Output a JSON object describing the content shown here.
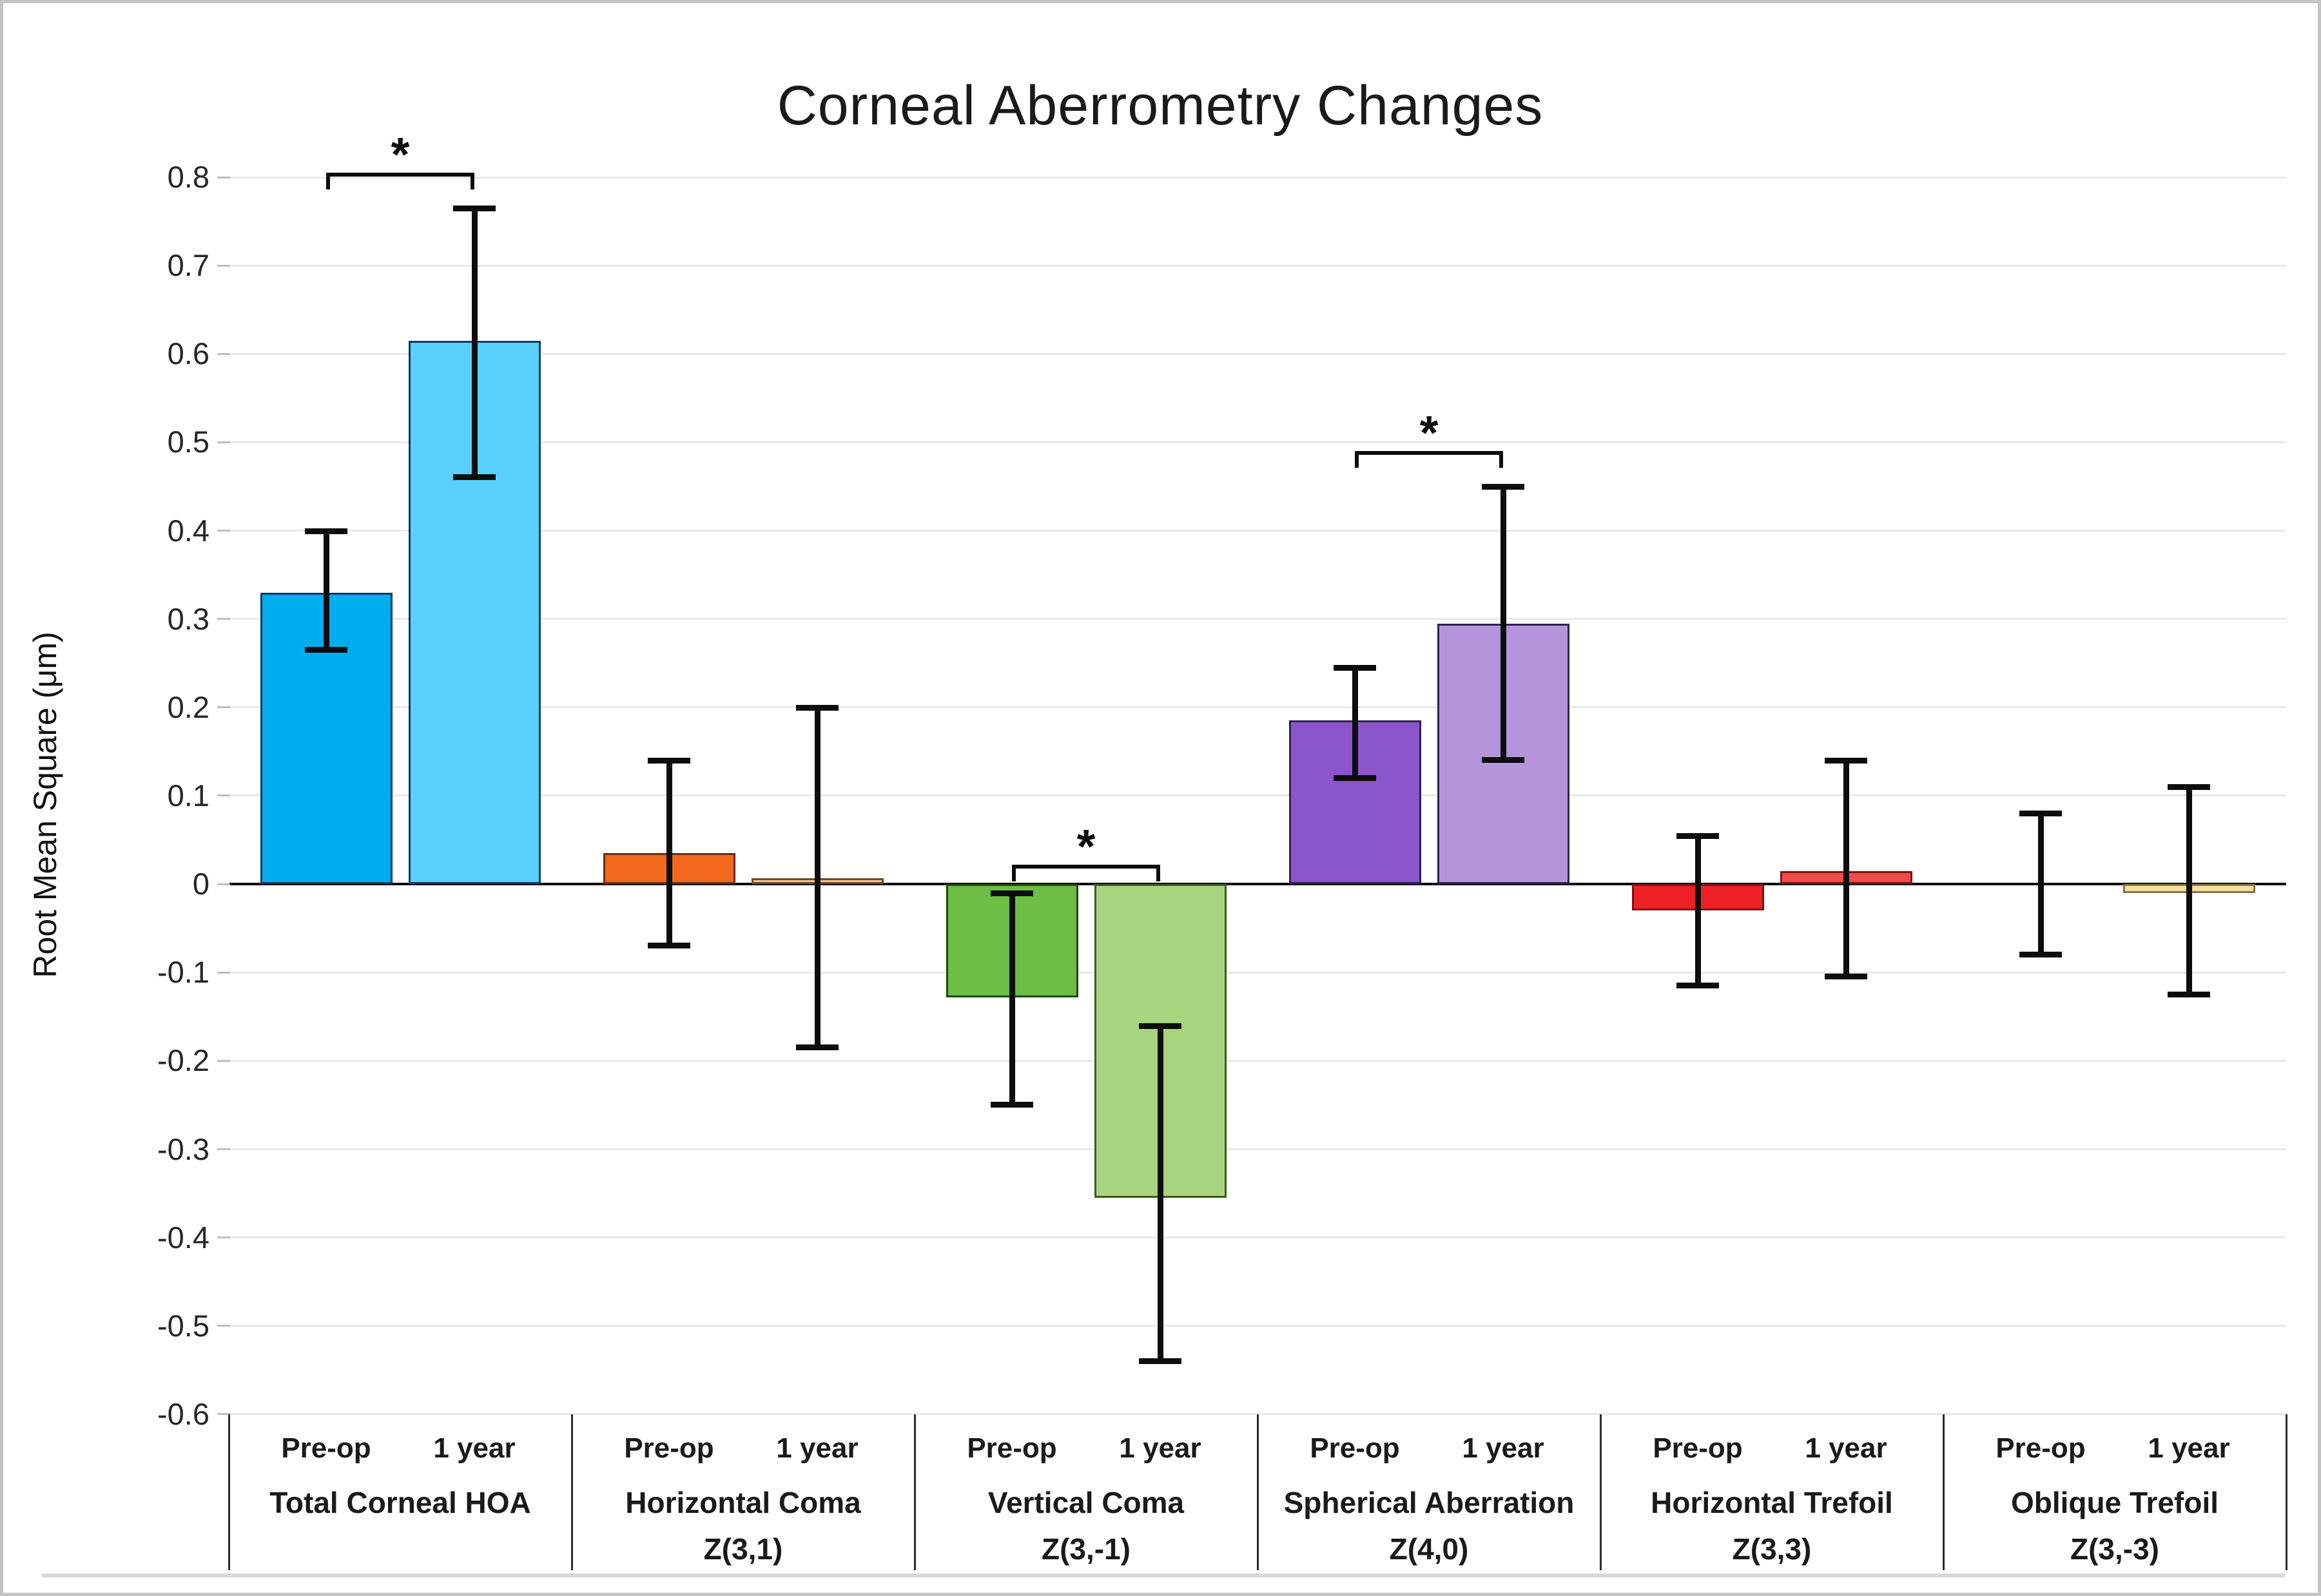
{
  "chart_data": {
    "type": "bar",
    "title": "Corneal Aberrometry Changes",
    "ylabel": "Root Mean Square (μm)",
    "ylim": [
      -0.6,
      0.8
    ],
    "ytick_step": 0.1,
    "grid": true,
    "legend": "none",
    "significance_symbol": "*",
    "y_tick_labels": [
      "0.8",
      "0.7",
      "0.6",
      "0.5",
      "0.4",
      "0.3",
      "0.2",
      "0.1",
      "0",
      "-0.1",
      "-0.2",
      "-0.3",
      "-0.4",
      "-0.5",
      "-0.6"
    ],
    "series_labels": [
      "Pre-op",
      "1 year"
    ],
    "groups": [
      {
        "name": "Total Corneal HOA",
        "zernike": "",
        "bars": [
          {
            "label": "Pre-op",
            "value": 0.33,
            "err_low": 0.265,
            "err_high": 0.4,
            "fill": "#00AEEF",
            "stroke": "#123A5E"
          },
          {
            "label": "1 year",
            "value": 0.615,
            "err_low": 0.46,
            "err_high": 0.765,
            "fill": "#58D0FB",
            "stroke": "#123A5E"
          }
        ],
        "significance": {
          "show": true,
          "bracket_y": 0.805
        }
      },
      {
        "name": "Horizontal Coma",
        "zernike": "Z(3,1)",
        "bars": [
          {
            "label": "Pre-op",
            "value": 0.035,
            "err_low": -0.07,
            "err_high": 0.14,
            "fill": "#F2691D",
            "stroke": "#6E2A0C"
          },
          {
            "label": "1 year",
            "value": 0.007,
            "err_low": -0.185,
            "err_high": 0.2,
            "fill": "#F0C492",
            "stroke": "#6B4A1F"
          }
        ],
        "significance": {
          "show": false
        }
      },
      {
        "name": "Vertical Coma",
        "zernike": "Z(3,-1)",
        "bars": [
          {
            "label": "Pre-op",
            "value": -0.128,
            "err_low": -0.25,
            "err_high": -0.01,
            "fill": "#6CBE45",
            "stroke": "#1F4708"
          },
          {
            "label": "1 year",
            "value": -0.355,
            "err_low": -0.54,
            "err_high": -0.16,
            "fill": "#A9D47F",
            "stroke": "#3A5B1E"
          }
        ],
        "significance": {
          "show": true,
          "bracket_y": 0.022
        }
      },
      {
        "name": "Spherical Aberration",
        "zernike": "Z(4,0)",
        "bars": [
          {
            "label": "Pre-op",
            "value": 0.185,
            "err_low": 0.12,
            "err_high": 0.245,
            "fill": "#8B55CB",
            "stroke": "#2F2152"
          },
          {
            "label": "1 year",
            "value": 0.295,
            "err_low": 0.14,
            "err_high": 0.45,
            "fill": "#B495DC",
            "stroke": "#2F2152"
          }
        ],
        "significance": {
          "show": true,
          "bracket_y": 0.49
        }
      },
      {
        "name": "Horizontal Trefoil",
        "zernike": "Z(3,3)",
        "bars": [
          {
            "label": "Pre-op",
            "value": -0.03,
            "err_low": -0.115,
            "err_high": 0.055,
            "fill": "#ED2024",
            "stroke": "#7C1216"
          },
          {
            "label": "1 year",
            "value": 0.015,
            "err_low": -0.105,
            "err_high": 0.14,
            "fill": "#F04C4C",
            "stroke": "#7C1216"
          }
        ],
        "significance": {
          "show": false
        }
      },
      {
        "name": "Oblique Trefoil",
        "zernike": "Z(3,-3)",
        "bars": [
          {
            "label": "Pre-op",
            "value": 0.0,
            "err_low": -0.08,
            "err_high": 0.08,
            "fill": "",
            "stroke": ""
          },
          {
            "label": "1 year",
            "value": -0.01,
            "err_low": -0.125,
            "err_high": 0.11,
            "fill": "#F5DFA3",
            "stroke": "#8A7339"
          }
        ],
        "significance": {
          "show": false
        }
      }
    ]
  }
}
